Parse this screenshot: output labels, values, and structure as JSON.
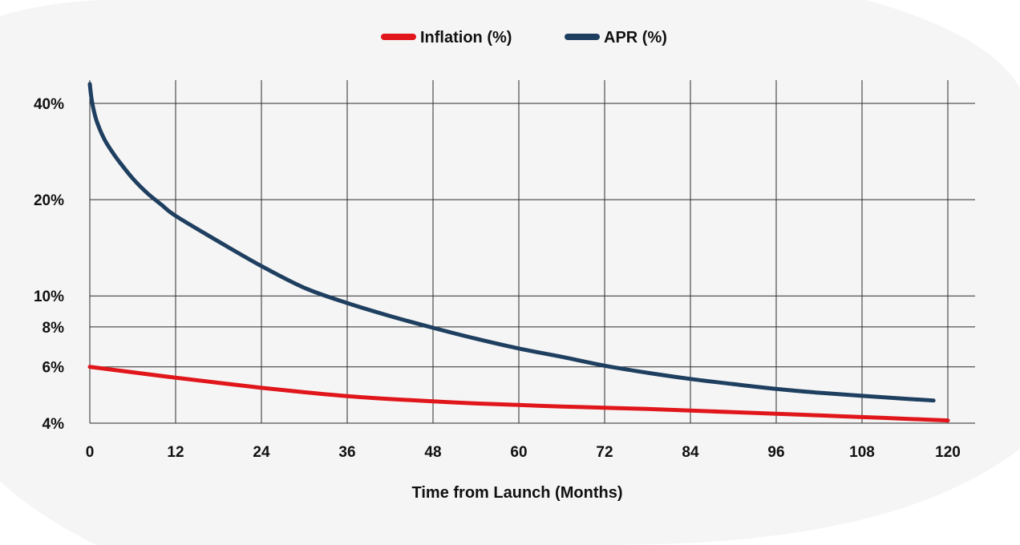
{
  "colors": {
    "page_background": "#ffffff",
    "panel_background": "#f5f5f5",
    "grid": "#2b2b2b",
    "text": "#111111"
  },
  "chart_data": {
    "type": "line",
    "title": "",
    "xlabel": "Time from Launch (Months)",
    "ylabel": "",
    "y_scale": "log",
    "xlim": [
      0,
      120
    ],
    "ylim": [
      4,
      46
    ],
    "grid": true,
    "legend_position": "top-center",
    "x_ticks": [
      0,
      12,
      24,
      36,
      48,
      60,
      72,
      84,
      96,
      108,
      120
    ],
    "x_tick_labels": [
      "0",
      "12",
      "24",
      "36",
      "48",
      "60",
      "72",
      "84",
      "96",
      "108",
      "120"
    ],
    "y_ticks": [
      4,
      6,
      8,
      10,
      20,
      40
    ],
    "y_tick_labels": [
      "4%",
      "6%",
      "8%",
      "10%",
      "20%",
      "40%"
    ],
    "series": [
      {
        "name": "Inflation (%)",
        "color": "#e0161b",
        "x": [
          0,
          6,
          12,
          18,
          24,
          30,
          36,
          42,
          48,
          54,
          60,
          66,
          72,
          78,
          84,
          90,
          96,
          102,
          108,
          114,
          120
        ],
        "y": [
          6.0,
          5.77,
          5.55,
          5.35,
          5.16,
          5.0,
          4.86,
          4.76,
          4.68,
          4.61,
          4.56,
          4.51,
          4.47,
          4.43,
          4.38,
          4.33,
          4.28,
          4.23,
          4.18,
          4.13,
          4.08
        ]
      },
      {
        "name": "APR (%)",
        "color": "#1f3f60",
        "x": [
          0,
          0.2,
          0.5,
          1,
          2,
          3,
          4,
          6,
          8,
          10,
          12,
          18,
          24,
          30,
          36,
          42,
          48,
          54,
          60,
          66,
          72,
          78,
          84,
          90,
          96,
          102,
          108,
          114,
          118
        ],
        "y": [
          46,
          42,
          38.5,
          35,
          31,
          28.5,
          26.5,
          23.3,
          21.0,
          19.3,
          17.8,
          14.8,
          12.4,
          10.6,
          9.5,
          8.65,
          7.95,
          7.35,
          6.85,
          6.45,
          6.05,
          5.75,
          5.5,
          5.3,
          5.12,
          4.98,
          4.87,
          4.77,
          4.71
        ]
      }
    ]
  }
}
